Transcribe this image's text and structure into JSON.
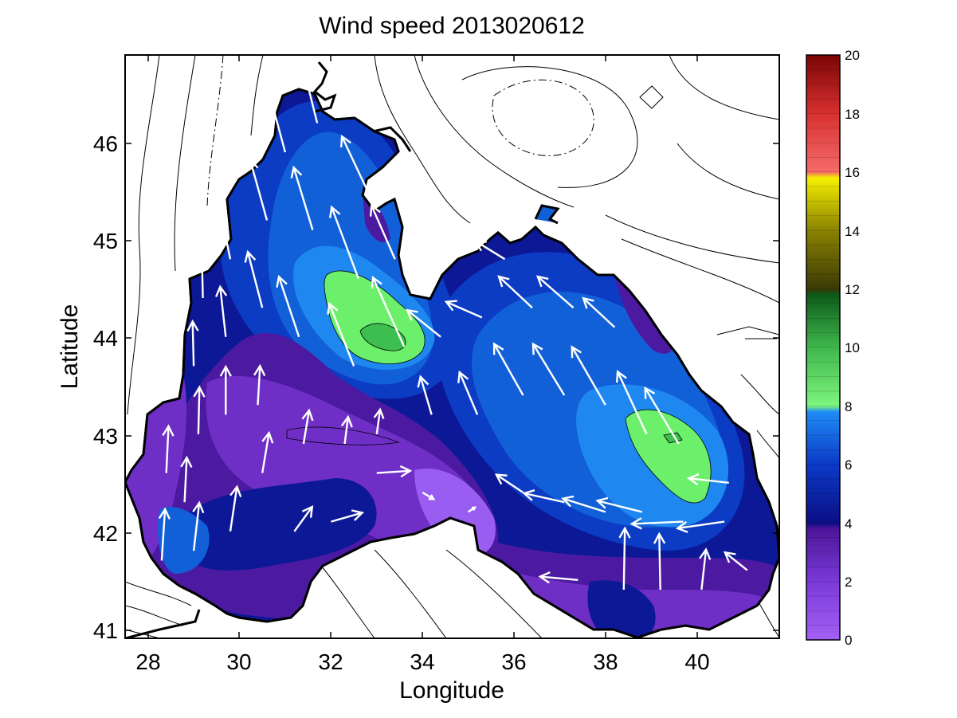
{
  "chart_data": {
    "type": "heatmap",
    "title": "Wind speed 2013020612",
    "xlabel": "Longitude",
    "ylabel": "Latitude",
    "xlim": [
      27.5,
      41.8
    ],
    "ylim": [
      40.9,
      46.9
    ],
    "x_ticks": [
      "28",
      "30",
      "32",
      "34",
      "36",
      "38",
      "40"
    ],
    "y_ticks": [
      "41",
      "42",
      "43",
      "44",
      "45",
      "46"
    ],
    "colorbar": {
      "range": [
        0,
        20
      ],
      "ticks": [
        "0",
        "2",
        "4",
        "6",
        "8",
        "10",
        "12",
        "14",
        "16",
        "18",
        "20"
      ],
      "bands": [
        {
          "from": 0,
          "to": 4,
          "color": "#a05cf0"
        },
        {
          "from": 4,
          "to": 8,
          "color": "#1a6fe8"
        },
        {
          "from": 8,
          "to": 12,
          "color": "#3ec24a"
        },
        {
          "from": 12,
          "to": 16,
          "color": "#b8b400"
        },
        {
          "from": 16,
          "to": 20,
          "color": "#e83a3a"
        }
      ]
    },
    "colors": {
      "purple_light": "#9a5df2",
      "purple_mid": "#6f2fc7",
      "purple_dark": "#4c1aa0",
      "navy": "#0d1896",
      "blue_dark": "#0c3bc4",
      "blue_mid": "#1260d8",
      "blue_light": "#1e88f0",
      "green_light": "#6cf06c",
      "green_mid": "#3cbf4e"
    },
    "max_regions": [
      {
        "lon": 33.2,
        "lat": 44.1,
        "speed_range": "8-10"
      },
      {
        "lon": 39.3,
        "lat": 43.0,
        "speed_range": "8-10"
      }
    ],
    "arrows": [
      {
        "lon": 28.3,
        "lat": 41.7,
        "u": 0.3,
        "v": 4.6
      },
      {
        "lon": 28.4,
        "lat": 42.6,
        "u": 0.2,
        "v": 4.2
      },
      {
        "lon": 29.0,
        "lat": 41.8,
        "u": 0.5,
        "v": 4.3
      },
      {
        "lon": 28.8,
        "lat": 42.3,
        "u": 0.2,
        "v": 4.0
      },
      {
        "lon": 29.1,
        "lat": 43.0,
        "u": 0.1,
        "v": 4.2
      },
      {
        "lon": 29.0,
        "lat": 43.7,
        "u": -0.1,
        "v": 4.0
      },
      {
        "lon": 29.2,
        "lat": 44.4,
        "u": -0.1,
        "v": 4.1
      },
      {
        "lon": 29.8,
        "lat": 42.0,
        "u": 0.6,
        "v": 4.0
      },
      {
        "lon": 29.7,
        "lat": 43.2,
        "u": 0.0,
        "v": 4.3
      },
      {
        "lon": 29.7,
        "lat": 44.0,
        "u": -0.5,
        "v": 4.5
      },
      {
        "lon": 29.8,
        "lat": 44.8,
        "u": -1.0,
        "v": 4.8
      },
      {
        "lon": 30.5,
        "lat": 42.6,
        "u": 0.6,
        "v": 3.6
      },
      {
        "lon": 30.4,
        "lat": 43.3,
        "u": 0.2,
        "v": 3.5
      },
      {
        "lon": 30.5,
        "lat": 44.3,
        "u": -1.3,
        "v": 5.0
      },
      {
        "lon": 30.6,
        "lat": 45.2,
        "u": -1.5,
        "v": 5.4
      },
      {
        "lon": 31.0,
        "lat": 45.9,
        "u": -1.4,
        "v": 5.2
      },
      {
        "lon": 31.2,
        "lat": 42.0,
        "u": 1.6,
        "v": 2.2
      },
      {
        "lon": 31.4,
        "lat": 42.9,
        "u": 0.5,
        "v": 3.0
      },
      {
        "lon": 31.3,
        "lat": 44.0,
        "u": -1.8,
        "v": 5.4
      },
      {
        "lon": 31.6,
        "lat": 45.1,
        "u": -1.7,
        "v": 5.6
      },
      {
        "lon": 31.7,
        "lat": 46.2,
        "u": -1.2,
        "v": 4.8
      },
      {
        "lon": 32.0,
        "lat": 42.1,
        "u": 2.8,
        "v": 0.8
      },
      {
        "lon": 32.3,
        "lat": 42.9,
        "u": 0.3,
        "v": 2.4
      },
      {
        "lon": 32.5,
        "lat": 43.7,
        "u": -2.2,
        "v": 5.6
      },
      {
        "lon": 32.6,
        "lat": 44.6,
        "u": -2.4,
        "v": 6.4
      },
      {
        "lon": 32.8,
        "lat": 45.5,
        "u": -2.3,
        "v": 4.9
      },
      {
        "lon": 33.0,
        "lat": 42.6,
        "u": 3.0,
        "v": 0.2
      },
      {
        "lon": 33.0,
        "lat": 43.0,
        "u": 0.3,
        "v": 2.2
      },
      {
        "lon": 33.6,
        "lat": 43.9,
        "u": -2.8,
        "v": 6.2
      },
      {
        "lon": 33.4,
        "lat": 44.8,
        "u": -2.1,
        "v": 4.8
      },
      {
        "lon": 34.0,
        "lat": 42.4,
        "u": 1.0,
        "v": -0.6
      },
      {
        "lon": 34.2,
        "lat": 43.2,
        "u": -1.0,
        "v": 3.4
      },
      {
        "lon": 34.4,
        "lat": 44.0,
        "u": -3.0,
        "v": 2.4
      },
      {
        "lon": 35.0,
        "lat": 42.2,
        "u": 0.6,
        "v": 0.4
      },
      {
        "lon": 35.2,
        "lat": 43.2,
        "u": -1.6,
        "v": 3.8
      },
      {
        "lon": 35.3,
        "lat": 44.2,
        "u": -3.2,
        "v": 1.4
      },
      {
        "lon": 35.8,
        "lat": 44.8,
        "u": -2.6,
        "v": 1.6
      },
      {
        "lon": 36.2,
        "lat": 42.4,
        "u": -2.4,
        "v": 1.6
      },
      {
        "lon": 36.2,
        "lat": 43.4,
        "u": -2.6,
        "v": 4.6
      },
      {
        "lon": 36.4,
        "lat": 44.3,
        "u": -3.0,
        "v": 2.8
      },
      {
        "lon": 37.1,
        "lat": 42.3,
        "u": -3.6,
        "v": 0.8
      },
      {
        "lon": 37.1,
        "lat": 43.4,
        "u": -2.8,
        "v": 4.6
      },
      {
        "lon": 37.3,
        "lat": 44.3,
        "u": -3.2,
        "v": 2.8
      },
      {
        "lon": 37.4,
        "lat": 41.5,
        "u": -3.4,
        "v": 0.3
      },
      {
        "lon": 38.0,
        "lat": 42.2,
        "u": -3.8,
        "v": 1.2
      },
      {
        "lon": 38.0,
        "lat": 43.3,
        "u": -3.0,
        "v": 5.2
      },
      {
        "lon": 38.2,
        "lat": 44.1,
        "u": -2.8,
        "v": 2.6
      },
      {
        "lon": 38.4,
        "lat": 41.4,
        "u": 0.1,
        "v": 5.5
      },
      {
        "lon": 38.8,
        "lat": 42.2,
        "u": -4.0,
        "v": 1.0
      },
      {
        "lon": 38.9,
        "lat": 43.0,
        "u": -2.6,
        "v": 5.6
      },
      {
        "lon": 39.2,
        "lat": 41.4,
        "u": -0.1,
        "v": 5.0
      },
      {
        "lon": 39.7,
        "lat": 42.1,
        "u": -4.6,
        "v": -0.2
      },
      {
        "lon": 39.6,
        "lat": 42.9,
        "u": -3.0,
        "v": 5.0
      },
      {
        "lon": 40.1,
        "lat": 41.4,
        "u": 0.4,
        "v": 3.6
      },
      {
        "lon": 40.6,
        "lat": 42.1,
        "u": -4.2,
        "v": -0.6
      },
      {
        "lon": 40.7,
        "lat": 42.5,
        "u": -3.6,
        "v": 0.4
      },
      {
        "lon": 41.1,
        "lat": 41.6,
        "u": -2.0,
        "v": 1.6
      }
    ]
  }
}
